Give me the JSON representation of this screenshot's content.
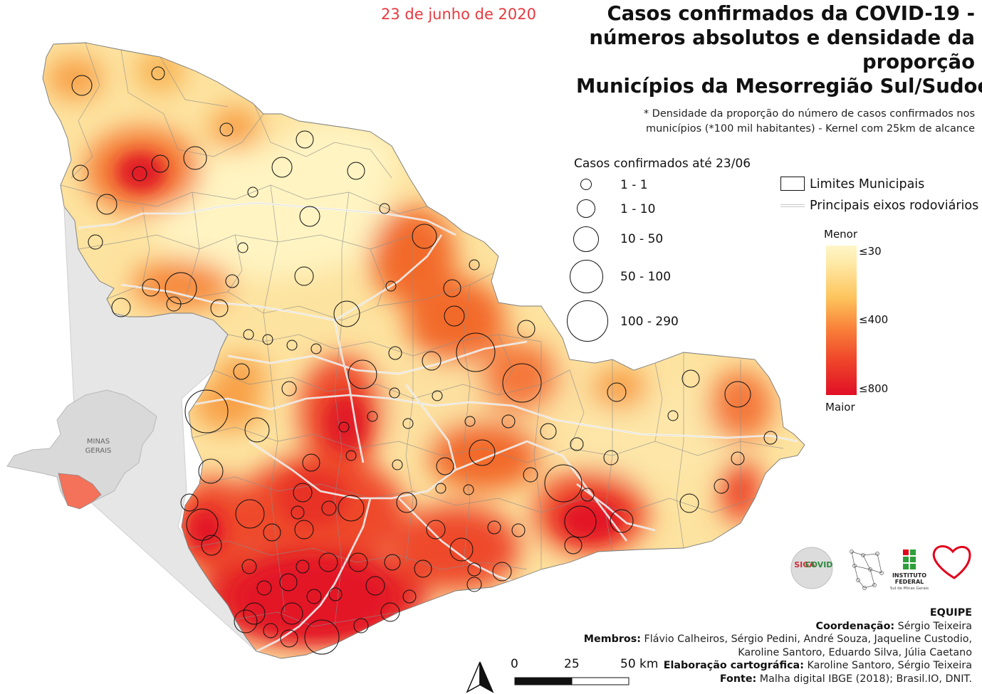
{
  "date": "23 de junho de 2020",
  "title_lines": [
    "Casos confirmados da COVID-19 -",
    "números absolutos e densidade da",
    "proporção",
    "Municípios da Mesorregião Sul/Sudoeste"
  ],
  "note_lines": [
    "* Densidade da proporção do número de casos confirmados nos",
    "municípios (*100 mil habitantes) - Kernel com 25km de alcance"
  ],
  "cases_legend": {
    "title": "Casos confirmados até 23/06",
    "classes": [
      "1 - 1",
      "1 - 10",
      "10 - 50",
      "50 - 100",
      "100 - 290"
    ]
  },
  "layers_legend": {
    "municipal_limits": "Limites Municipais",
    "roads": "Principais eixos rodoviários"
  },
  "density_legend": {
    "top": "Menor",
    "bottom": "Maior",
    "breaks": [
      "≤30",
      "≤400",
      "≤800"
    ],
    "colors": [
      "#fff6c8",
      "#fdc45c",
      "#f04a2b",
      "#e00f25"
    ]
  },
  "inset": {
    "state_label_1": "MINAS",
    "state_label_2": "GERAIS",
    "state_color": "#d9d9d9",
    "region_color": "#f4715a"
  },
  "scale_bar": {
    "labels": [
      "0",
      "25",
      "50 km"
    ]
  },
  "logos": {
    "siga_covid_line1": "SIGA",
    "siga_covid_line2": "COVID",
    "institute_line1": "INSTITUTO",
    "institute_line2": "FEDERAL",
    "institute_line3": "Sul de Minas Gerais"
  },
  "team": {
    "header": "EQUIPE",
    "coord_label": "Coordenação:",
    "coord_value": " Sérgio Teixeira",
    "members_label": "Membros:",
    "members_line1": " Flávio Calheiros, Sérgio Pedini, André Souza, Jaqueline Custodio,",
    "members_line2": "Karoline Santoro, Eduardo Silva, Júlia Caetano",
    "carto_label": "Elaboração cartográfica:",
    "carto_value": " Karoline Santoro, Sérgio Teixeira",
    "source_label": "Fonte:",
    "source_value": " Malha digital IBGE (2018); Brasil.IO, DNIT."
  }
}
